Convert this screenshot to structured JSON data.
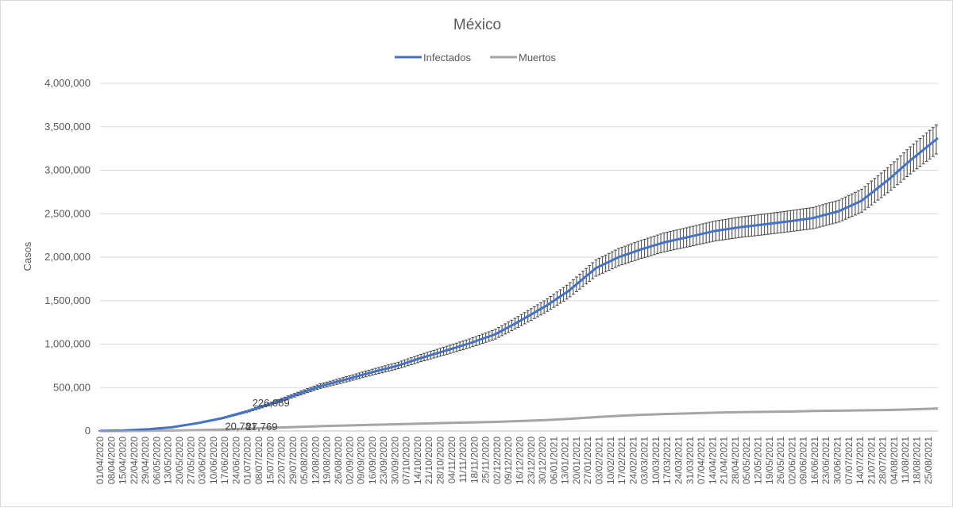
{
  "chart_data": {
    "type": "line",
    "title": "México",
    "ylabel": "Casos",
    "xlabel": "",
    "ylim": [
      0,
      4000000
    ],
    "y_ticks": [
      "0",
      "500,000",
      "1,000,000",
      "1,500,000",
      "2,000,000",
      "2,500,000",
      "3,000,000",
      "3,500,000",
      "4,000,000"
    ],
    "y_tick_values": [
      0,
      500000,
      1000000,
      1500000,
      2000000,
      2500000,
      3000000,
      3500000,
      4000000
    ],
    "x_start": "01/04/2020",
    "x_end": "31/08/2021",
    "x_ticks": [
      "01/04/2020",
      "08/04/2020",
      "15/04/2020",
      "22/04/2020",
      "29/04/2020",
      "06/05/2020",
      "13/05/2020",
      "20/05/2020",
      "27/05/2020",
      "03/06/2020",
      "10/06/2020",
      "17/06/2020",
      "24/06/2020",
      "01/07/2020",
      "08/07/2020",
      "15/07/2020",
      "22/07/2020",
      "29/07/2020",
      "05/08/2020",
      "12/08/2020",
      "19/08/2020",
      "26/08/2020",
      "02/09/2020",
      "09/09/2020",
      "16/09/2020",
      "23/09/2020",
      "30/09/2020",
      "07/10/2020",
      "14/10/2020",
      "21/10/2020",
      "28/10/2020",
      "04/11/2020",
      "11/11/2020",
      "18/11/2020",
      "25/11/2020",
      "02/12/2020",
      "09/12/2020",
      "16/12/2020",
      "23/12/2020",
      "30/12/2020",
      "06/01/2021",
      "13/01/2021",
      "20/01/2021",
      "27/01/2021",
      "03/02/2021",
      "10/02/2021",
      "17/02/2021",
      "24/02/2021",
      "03/03/2021",
      "10/03/2021",
      "17/03/2021",
      "24/03/2021",
      "31/03/2021",
      "07/04/2021",
      "14/04/2021",
      "21/04/2021",
      "28/04/2021",
      "05/05/2021",
      "12/05/2021",
      "19/05/2021",
      "26/05/2021",
      "02/06/2021",
      "09/06/2021",
      "16/06/2021",
      "23/06/2021",
      "30/06/2021",
      "07/07/2021",
      "14/07/2021",
      "21/07/2021",
      "28/07/2021",
      "04/08/2021",
      "11/08/2021",
      "18/08/2021",
      "25/08/2021"
    ],
    "legend_position": "top",
    "grid": true,
    "error_bars": true,
    "error_pct": 0.05,
    "series": [
      {
        "name": "Infectados",
        "color": "#4472c4",
        "points": [
          {
            "x": "01/04/2020",
            "y": 1400
          },
          {
            "x": "15/04/2020",
            "y": 5500
          },
          {
            "x": "01/05/2020",
            "y": 20000
          },
          {
            "x": "15/05/2020",
            "y": 42000
          },
          {
            "x": "01/06/2020",
            "y": 93000
          },
          {
            "x": "15/06/2020",
            "y": 146000
          },
          {
            "x": "01/07/2020",
            "y": 226089
          },
          {
            "x": "15/07/2020",
            "y": 311000
          },
          {
            "x": "01/08/2020",
            "y": 425000
          },
          {
            "x": "15/08/2020",
            "y": 517000
          },
          {
            "x": "01/09/2020",
            "y": 600000
          },
          {
            "x": "15/09/2020",
            "y": 672000
          },
          {
            "x": "01/10/2020",
            "y": 748000
          },
          {
            "x": "15/10/2020",
            "y": 834000
          },
          {
            "x": "01/11/2020",
            "y": 929000
          },
          {
            "x": "15/11/2020",
            "y": 1009000
          },
          {
            "x": "01/12/2020",
            "y": 1114000
          },
          {
            "x": "15/12/2020",
            "y": 1255000
          },
          {
            "x": "01/01/2021",
            "y": 1437000
          },
          {
            "x": "15/01/2021",
            "y": 1610000
          },
          {
            "x": "01/02/2021",
            "y": 1875000
          },
          {
            "x": "15/02/2021",
            "y": 2000000
          },
          {
            "x": "01/03/2021",
            "y": 2090000
          },
          {
            "x": "15/03/2021",
            "y": 2170000
          },
          {
            "x": "01/04/2021",
            "y": 2240000
          },
          {
            "x": "15/04/2021",
            "y": 2300000
          },
          {
            "x": "01/05/2021",
            "y": 2345000
          },
          {
            "x": "15/05/2021",
            "y": 2375000
          },
          {
            "x": "01/06/2021",
            "y": 2415000
          },
          {
            "x": "15/06/2021",
            "y": 2450000
          },
          {
            "x": "01/07/2021",
            "y": 2530000
          },
          {
            "x": "15/07/2021",
            "y": 2650000
          },
          {
            "x": "01/08/2021",
            "y": 2900000
          },
          {
            "x": "15/08/2021",
            "y": 3130000
          },
          {
            "x": "31/08/2021",
            "y": 3370000
          }
        ]
      },
      {
        "name": "Muertos",
        "color": "#a5a5a5",
        "points": [
          {
            "x": "01/04/2020",
            "y": 30
          },
          {
            "x": "15/04/2020",
            "y": 450
          },
          {
            "x": "01/05/2020",
            "y": 2000
          },
          {
            "x": "15/05/2020",
            "y": 4500
          },
          {
            "x": "01/06/2020",
            "y": 10000
          },
          {
            "x": "15/06/2020",
            "y": 17100
          },
          {
            "x": "01/07/2020",
            "y": 27769
          },
          {
            "x": "15/07/2020",
            "y": 36900
          },
          {
            "x": "01/08/2020",
            "y": 47000
          },
          {
            "x": "15/08/2020",
            "y": 56000
          },
          {
            "x": "01/09/2020",
            "y": 64000
          },
          {
            "x": "15/09/2020",
            "y": 71000
          },
          {
            "x": "01/10/2020",
            "y": 78000
          },
          {
            "x": "15/10/2020",
            "y": 84000
          },
          {
            "x": "01/11/2020",
            "y": 92000
          },
          {
            "x": "15/11/2020",
            "y": 98000
          },
          {
            "x": "01/12/2020",
            "y": 105000
          },
          {
            "x": "15/12/2020",
            "y": 114000
          },
          {
            "x": "01/01/2021",
            "y": 126000
          },
          {
            "x": "15/01/2021",
            "y": 140000
          },
          {
            "x": "01/02/2021",
            "y": 160000
          },
          {
            "x": "15/02/2021",
            "y": 174000
          },
          {
            "x": "01/03/2021",
            "y": 186000
          },
          {
            "x": "15/03/2021",
            "y": 195000
          },
          {
            "x": "01/04/2021",
            "y": 204000
          },
          {
            "x": "15/04/2021",
            "y": 211000
          },
          {
            "x": "01/05/2021",
            "y": 217000
          },
          {
            "x": "15/05/2021",
            "y": 220000
          },
          {
            "x": "01/06/2021",
            "y": 224000
          },
          {
            "x": "15/06/2021",
            "y": 230000
          },
          {
            "x": "01/07/2021",
            "y": 234000
          },
          {
            "x": "15/07/2021",
            "y": 237000
          },
          {
            "x": "01/08/2021",
            "y": 242000
          },
          {
            "x": "15/08/2021",
            "y": 249000
          },
          {
            "x": "31/08/2021",
            "y": 259000
          }
        ]
      }
    ],
    "annotations": [
      {
        "text": "226,089",
        "x": "01/07/2020",
        "y": 226089,
        "series": "Infectados"
      },
      {
        "text": "20,781",
        "x": "24/06/2020",
        "y": 20781,
        "series": "Muertos"
      },
      {
        "text": "27,769",
        "x": "01/07/2020",
        "y": 27769,
        "series": "Muertos"
      }
    ]
  }
}
